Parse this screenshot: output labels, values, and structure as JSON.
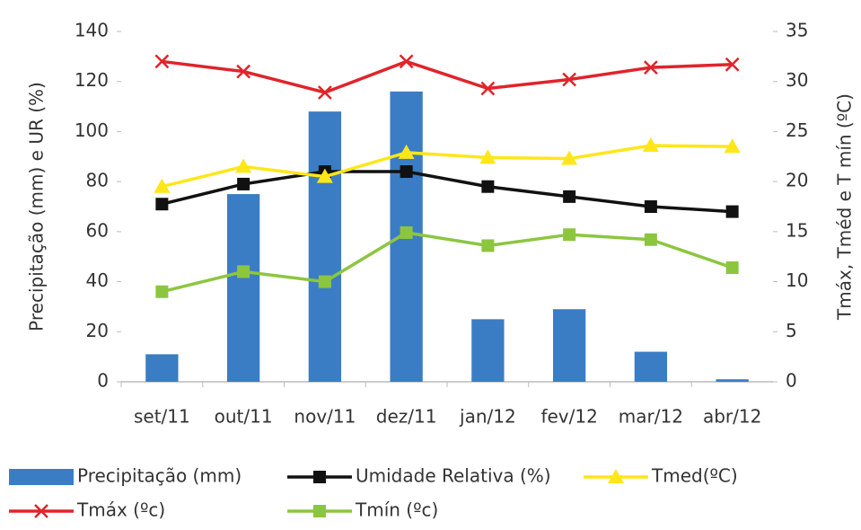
{
  "chart_data": {
    "type": "bar",
    "y_label": "Precipitação (mm) e UR (%)",
    "y2_label": "Tmáx, Tméd e T mín (ºC)",
    "categories": [
      "set/11",
      "out/11",
      "nov/11",
      "dez/11",
      "jan/12",
      "fev/12",
      "mar/12",
      "abr/12"
    ],
    "series": [
      {
        "name": "Precipitação (mm)",
        "type": "bar",
        "color": "#3b7dc4",
        "values": [
          11,
          75,
          108,
          116,
          25,
          29,
          12,
          1
        ]
      },
      {
        "name": "Umidade Relativa (%)",
        "type": "line",
        "marker": "square",
        "color": "#111111",
        "values": [
          71,
          79,
          84,
          84,
          78,
          74,
          70,
          68
        ]
      },
      {
        "name": "Tmed(ºC)",
        "type": "line",
        "marker": "triangle",
        "axis": "y2",
        "color": "#ffe619",
        "values": [
          19.5,
          21.5,
          20.5,
          22.9,
          22.4,
          22.3,
          23.6,
          23.5
        ]
      },
      {
        "name": "Tmáx (ºc)",
        "type": "line",
        "marker": "x",
        "axis": "y2",
        "color": "#e0242a",
        "values": [
          32,
          31,
          28.9,
          32,
          29.3,
          30.2,
          31.4,
          31.7
        ]
      },
      {
        "name": "Tmín (ºc)",
        "type": "line",
        "marker": "square",
        "axis": "y2",
        "color": "#8cc63f",
        "values": [
          9,
          11,
          10,
          14.9,
          13.6,
          14.7,
          14.2,
          11.4
        ]
      }
    ],
    "ylim": [
      0,
      140
    ],
    "yticks": [
      0,
      20,
      40,
      60,
      80,
      100,
      120,
      140
    ],
    "y2lim": [
      0,
      35
    ],
    "y2ticks": [
      0,
      5,
      10,
      15,
      20,
      25,
      30,
      35
    ],
    "grid": false,
    "legend": "bottom"
  }
}
